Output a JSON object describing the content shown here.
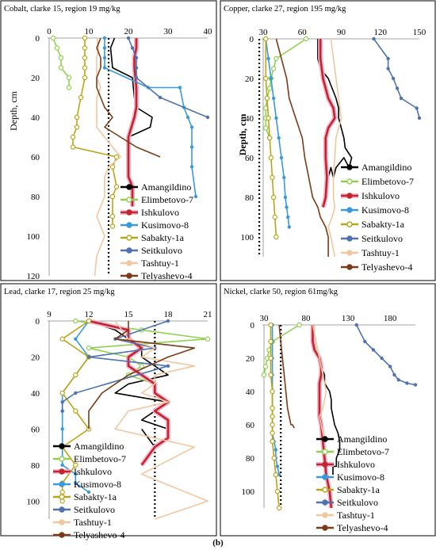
{
  "figure": {
    "caption": "(b)"
  },
  "colors": {
    "Amangildino": "#000000",
    "Elimbetovo-7": "#8fd14f",
    "Ishkulovo": "#c0262d",
    "Kusimovo-8": "#3a9ad9",
    "Sabakty-1a": "#b8a619",
    "Seitkulovo": "#4f73ad",
    "Tashtuy-1": "#f0c79f",
    "Telyashevo-4": "#7a3b17",
    "clarke": "#000000",
    "ishkulovo_halo": "#f4b6cf"
  },
  "chart_data": [
    {
      "type": "line",
      "title": "Cobalt, clarke 15, region 19 mg/kg",
      "xlabel": "",
      "ylabel": "Depth, cm",
      "xlim": [
        0,
        40
      ],
      "ylim": [
        0,
        120
      ],
      "xticks": [
        0,
        10,
        20,
        30,
        40
      ],
      "yticks": [
        0,
        20,
        40,
        60,
        80,
        100,
        120
      ],
      "clarke": 15,
      "legend": [
        "Amangildino",
        "Elimbetovo-7",
        "Ishkulovo",
        "Kusimovo-8",
        "Sabakty-1a",
        "Seitkulovo",
        "Tashtuy-1",
        "Telyashevo-4"
      ],
      "series": [
        {
          "name": "Amangildino",
          "x": [
            16.5,
            15.5,
            16,
            21,
            21.5,
            22,
            26,
            25.5,
            20,
            20
          ],
          "y": [
            0,
            5,
            15,
            20,
            30,
            35,
            40,
            45,
            50,
            55
          ]
        },
        {
          "name": "Elimbetovo-7",
          "x": [
            1,
            2,
            3,
            3,
            5,
            5
          ],
          "y": [
            0,
            5,
            10,
            15,
            20,
            25
          ]
        },
        {
          "name": "Ishkulovo",
          "x": [
            22,
            22,
            21.5,
            21.5,
            22,
            22,
            22,
            21.5,
            20,
            20,
            20,
            20,
            21,
            21,
            21
          ],
          "y": [
            0,
            5,
            10,
            15,
            25,
            30,
            35,
            40,
            50,
            55,
            60,
            70,
            75,
            80,
            85
          ]
        },
        {
          "name": "Kusimovo-8",
          "x": [
            14,
            14,
            14,
            14,
            25,
            33,
            34,
            35,
            36,
            36,
            36,
            37
          ],
          "y": [
            0,
            5,
            10,
            15,
            25,
            25,
            35,
            40,
            45,
            55,
            65,
            80
          ]
        },
        {
          "name": "Sabakty-1a",
          "x": [
            9,
            9,
            9,
            9,
            9,
            8,
            7,
            7,
            6,
            6,
            17,
            16,
            17,
            16,
            16,
            16
          ],
          "y": [
            0,
            5,
            10,
            15,
            20,
            30,
            40,
            45,
            50,
            55,
            60,
            65,
            75,
            80,
            90,
            95
          ]
        },
        {
          "name": "Seitkulovo",
          "x": [
            20,
            21,
            22,
            22,
            22,
            28,
            40
          ],
          "y": [
            0,
            5,
            10,
            15,
            20,
            30,
            40
          ]
        },
        {
          "name": "Tashtuy-1",
          "x": [
            12,
            12.5,
            12,
            12,
            12,
            13,
            12,
            12,
            12,
            16,
            18,
            15,
            14,
            14,
            12,
            14,
            12,
            11.5
          ],
          "y": [
            0,
            5,
            10,
            15,
            20,
            25,
            30,
            40,
            45,
            55,
            60,
            65,
            70,
            80,
            90,
            100,
            110,
            120
          ]
        },
        {
          "name": "Telyashevo-4",
          "x": [
            13,
            12,
            13,
            13,
            12,
            12,
            13,
            14,
            16,
            14,
            18,
            22,
            28
          ],
          "y": [
            0,
            5,
            10,
            15,
            20,
            25,
            30,
            35,
            40,
            45,
            50,
            55,
            60
          ]
        }
      ]
    },
    {
      "type": "line",
      "title": "Copper, clarke 27, region 195 mg/kg",
      "xlabel": "",
      "ylabel": "Depth, cm",
      "xlim": [
        30,
        150
      ],
      "ylim": [
        0,
        110
      ],
      "xticks": [
        30,
        60,
        90,
        120,
        150
      ],
      "yticks": [
        0,
        20,
        40,
        60,
        80,
        100
      ],
      "clarke": 27,
      "legend": [
        "Amangildino",
        "Elimbetovo-7",
        "Ishkulovo",
        "Kusimovo-8",
        "Sabakty-1a",
        "Seitkulovo",
        "Tashtuy-1",
        "Telyashevo-4"
      ],
      "series": [
        {
          "name": "Amangildino",
          "x": [
            72,
            72,
            72,
            74,
            80,
            86,
            88,
            88,
            90,
            92,
            93,
            98,
            96,
            92,
            86,
            84,
            82,
            80
          ],
          "y": [
            0,
            5,
            10,
            15,
            20,
            30,
            35,
            40,
            45,
            50,
            55,
            60,
            65,
            60,
            65,
            70,
            65,
            70
          ]
        },
        {
          "name": "Elimbetovo-7",
          "x": [
            63,
            40,
            38,
            36,
            35,
            33,
            32,
            32,
            32,
            35
          ],
          "y": [
            0,
            10,
            15,
            20,
            25,
            30,
            35,
            40,
            45,
            50
          ]
        },
        {
          "name": "Ishkulovo",
          "x": [
            74,
            74,
            74,
            76,
            78,
            80,
            84,
            85,
            80,
            78,
            78,
            78,
            79,
            78,
            76
          ],
          "y": [
            0,
            5,
            10,
            20,
            25,
            30,
            35,
            40,
            45,
            50,
            55,
            60,
            70,
            80,
            85
          ]
        },
        {
          "name": "Kusimovo-8",
          "x": [
            32,
            34,
            36,
            38,
            40,
            42,
            44,
            46,
            47,
            48,
            49,
            50
          ],
          "y": [
            0,
            10,
            20,
            30,
            40,
            50,
            60,
            70,
            80,
            85,
            90,
            95
          ]
        },
        {
          "name": "Sabakty-1a",
          "x": [
            32,
            32,
            33,
            34,
            35,
            36,
            37,
            38,
            39,
            40
          ],
          "y": [
            0,
            20,
            30,
            40,
            50,
            60,
            70,
            80,
            90,
            100
          ]
        },
        {
          "name": "Seitkulovo",
          "x": [
            115,
            126,
            126,
            130,
            133,
            136,
            148,
            150
          ],
          "y": [
            0,
            10,
            15,
            20,
            25,
            30,
            35,
            40
          ]
        },
        {
          "name": "Tashtuy-1",
          "x": [
            82,
            84,
            86,
            88,
            90,
            86,
            85,
            84,
            84,
            85,
            83,
            80,
            82,
            85
          ],
          "y": [
            0,
            10,
            20,
            30,
            40,
            50,
            60,
            70,
            80,
            85,
            90,
            95,
            100,
            110
          ]
        },
        {
          "name": "Telyashevo-4",
          "x": [
            40,
            44,
            48,
            50,
            55,
            60,
            62,
            65,
            68,
            72,
            74,
            78,
            80,
            80,
            80
          ],
          "y": [
            0,
            10,
            20,
            30,
            40,
            50,
            60,
            70,
            80,
            85,
            90,
            95,
            100,
            105,
            110
          ]
        }
      ]
    },
    {
      "type": "line",
      "title": "Lead, clarke 17, region 25 mg/kg",
      "xlabel": "",
      "ylabel": "",
      "xlim": [
        9,
        21
      ],
      "ylim": [
        0,
        110
      ],
      "xticks": [
        9,
        12,
        15,
        18,
        21
      ],
      "yticks": [
        0,
        20,
        40,
        60,
        80,
        100
      ],
      "clarke": 17,
      "legend": [
        "Amangildino",
        "Elimbetovo-7",
        "Ishkulovo",
        "Kusimovo-8",
        "Sabakty-1a",
        "Seitkulovo",
        "Tashtuy-1",
        "Telyashevo-4"
      ],
      "series": [
        {
          "name": "Amangildino",
          "x": [
            12,
            14,
            15,
            16,
            16,
            17,
            18,
            15,
            14,
            18,
            17,
            16,
            18,
            18,
            17,
            16
          ],
          "y": [
            0,
            5,
            10,
            15,
            20,
            25,
            30,
            35,
            40,
            45,
            50,
            55,
            60,
            65,
            70,
            60
          ]
        },
        {
          "name": "Elimbetovo-7",
          "x": [
            11,
            16,
            21,
            12,
            15,
            16,
            15,
            17
          ],
          "y": [
            0,
            5,
            10,
            15,
            20,
            25,
            30,
            35
          ]
        },
        {
          "name": "Ishkulovo",
          "x": [
            12,
            15,
            15,
            16,
            15,
            15,
            16,
            17,
            17,
            18,
            17,
            18,
            18,
            18,
            17,
            16
          ],
          "y": [
            0,
            5,
            10,
            15,
            20,
            25,
            30,
            35,
            40,
            45,
            50,
            55,
            60,
            65,
            70,
            80
          ]
        },
        {
          "name": "Kusimovo-8",
          "x": [
            12,
            11,
            12,
            11,
            10,
            10,
            10,
            10,
            10,
            11,
            11,
            12
          ],
          "y": [
            0,
            10,
            20,
            30,
            40,
            50,
            60,
            70,
            80,
            85,
            90,
            95
          ]
        },
        {
          "name": "Sabakty-1a",
          "x": [
            12,
            10,
            12,
            11,
            10,
            11,
            12,
            10,
            11,
            10,
            10,
            10
          ],
          "y": [
            0,
            10,
            20,
            30,
            40,
            50,
            60,
            70,
            80,
            90,
            95,
            100
          ]
        },
        {
          "name": "Seitkulovo",
          "x": [
            18,
            14,
            17,
            12,
            18,
            11,
            10,
            10
          ],
          "y": [
            0,
            10,
            15,
            20,
            25,
            40,
            45,
            50
          ]
        },
        {
          "name": "Tashtuy-1",
          "x": [
            14,
            15,
            17,
            16,
            20,
            17,
            17,
            16,
            18,
            15,
            14,
            20,
            16,
            21,
            17
          ],
          "y": [
            0,
            10,
            15,
            20,
            25,
            30,
            35,
            40,
            45,
            50,
            60,
            70,
            85,
            100,
            110
          ]
        },
        {
          "name": "Telyashevo-4",
          "x": [
            15,
            15,
            14,
            20,
            18,
            15,
            13,
            12,
            12
          ],
          "y": [
            0,
            5,
            10,
            15,
            20,
            30,
            40,
            50,
            60
          ]
        }
      ]
    },
    {
      "type": "line",
      "title": "Nickel, clarke 50, region 61mg/kg",
      "xlabel": "",
      "ylabel": "",
      "xlim": [
        30,
        210
      ],
      "ylim": [
        0,
        110
      ],
      "xticks": [
        30,
        80,
        130,
        180
      ],
      "yticks": [
        0,
        20,
        40,
        60,
        80,
        100
      ],
      "clarke": 50,
      "legend": [
        "Amangildino",
        "Elimbetovo-7",
        "Ishkulovo",
        "Kusimovo-8",
        "Sabakty-1a",
        "Seitkulovo",
        "Tashtuy-1",
        "Telyashevo-4"
      ],
      "series": [
        {
          "name": "Amangildino",
          "x": [
            88,
            88,
            88,
            92,
            98,
            98,
            102,
            102,
            108,
            110,
            110,
            112,
            114,
            118,
            120,
            120,
            116,
            116,
            112,
            112
          ],
          "y": [
            0,
            5,
            10,
            15,
            20,
            25,
            30,
            35,
            40,
            45,
            50,
            55,
            60,
            65,
            70,
            75,
            80,
            85,
            85,
            90
          ]
        },
        {
          "name": "Elimbetovo-7",
          "x": [
            72,
            40,
            36,
            34,
            32,
            30
          ],
          "y": [
            0,
            10,
            15,
            20,
            25,
            30
          ]
        },
        {
          "name": "Ishkulovo",
          "x": [
            88,
            88,
            90,
            96,
            98,
            98,
            96,
            96,
            96,
            96,
            96,
            98,
            100,
            102,
            104,
            106,
            108,
            110
          ],
          "y": [
            0,
            10,
            15,
            20,
            25,
            30,
            35,
            40,
            45,
            50,
            55,
            60,
            70,
            80,
            90,
            95,
            100,
            110
          ]
        },
        {
          "name": "Kusimovo-8",
          "x": [
            40,
            40,
            40,
            40,
            40,
            40,
            40,
            40,
            40,
            42,
            44,
            44,
            46,
            48
          ],
          "y": [
            0,
            10,
            20,
            30,
            40,
            50,
            55,
            60,
            65,
            70,
            75,
            80,
            85,
            90
          ]
        },
        {
          "name": "Sabakty-1a",
          "x": [
            38,
            38,
            38,
            38,
            40,
            40,
            40,
            40,
            40,
            40,
            42,
            44,
            46,
            48
          ],
          "y": [
            0,
            10,
            20,
            30,
            40,
            50,
            55,
            60,
            65,
            70,
            80,
            90,
            100,
            110
          ]
        },
        {
          "name": "Seitkulovo",
          "x": [
            140,
            150,
            160,
            170,
            180,
            185,
            190,
            200,
            210
          ],
          "y": [
            0,
            10,
            15,
            20,
            25,
            30,
            33,
            35,
            36
          ]
        },
        {
          "name": "Tashtuy-1",
          "x": [
            88,
            92,
            96,
            100,
            104,
            100,
            96,
            98,
            100,
            102
          ],
          "y": [
            0,
            10,
            20,
            30,
            40,
            50,
            55,
            60,
            65,
            70
          ]
        },
        {
          "name": "Telyashevo-4",
          "x": [
            48,
            50,
            52,
            54,
            56,
            58,
            60,
            62,
            64,
            66
          ],
          "y": [
            0,
            10,
            20,
            30,
            40,
            50,
            55,
            60,
            60,
            62
          ]
        }
      ]
    }
  ]
}
